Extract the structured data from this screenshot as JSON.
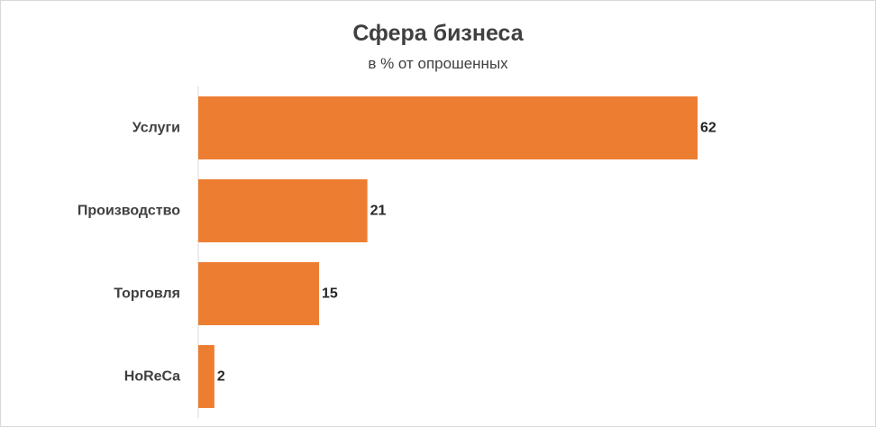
{
  "chart_data": {
    "type": "bar",
    "orientation": "horizontal",
    "title": "Сфера бизнеса",
    "subtitle": "в % от опрошенных",
    "categories": [
      "Услуги",
      "Производство",
      "Торговля",
      "HoReCa"
    ],
    "values": [
      62,
      21,
      15,
      2
    ],
    "xlim": [
      0,
      62
    ],
    "grid": false,
    "legend": "none",
    "bar_color": "#ed7d31",
    "data_labels": true
  }
}
